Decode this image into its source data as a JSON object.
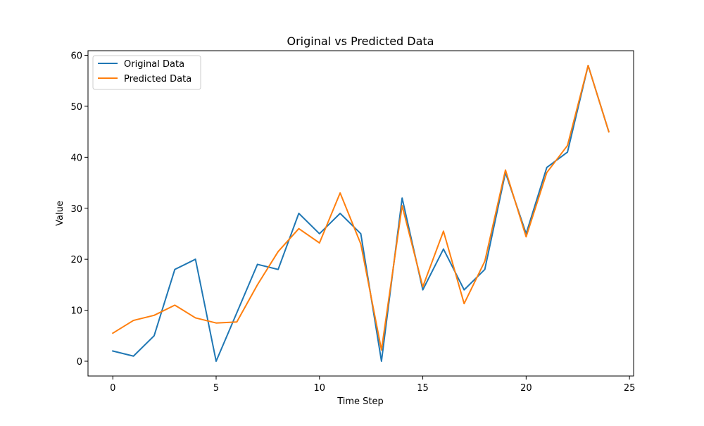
{
  "chart_data": {
    "type": "line",
    "title": "Original vs Predicted Data",
    "xlabel": "Time Step",
    "ylabel": "Value",
    "xlim": [
      -1.2,
      25.2
    ],
    "ylim": [
      -2.9,
      60.9
    ],
    "xticks": [
      0,
      5,
      10,
      15,
      20,
      25
    ],
    "yticks": [
      0,
      10,
      20,
      30,
      40,
      50,
      60
    ],
    "xtick_labels": [
      "0",
      "5",
      "10",
      "15",
      "20",
      "25"
    ],
    "ytick_labels": [
      "0",
      "10",
      "20",
      "30",
      "40",
      "50",
      "60"
    ],
    "grid": false,
    "legend_position": "top-left",
    "x": [
      0,
      1,
      2,
      3,
      4,
      5,
      6,
      7,
      8,
      9,
      10,
      11,
      12,
      13,
      14,
      15,
      16,
      17,
      18,
      19,
      20,
      21,
      22,
      23,
      24
    ],
    "series": [
      {
        "name": "Original Data",
        "color": "#1f77b4",
        "values": [
          2,
          1,
          5,
          18,
          20,
          0,
          9.5,
          19,
          18,
          29,
          25,
          29,
          25,
          0,
          32,
          14,
          22,
          14,
          18,
          37,
          25,
          38,
          41,
          58,
          45
        ]
      },
      {
        "name": "Predicted Data",
        "color": "#ff7f0e",
        "values": [
          5.5,
          8,
          9,
          11,
          8.5,
          7.5,
          7.7,
          15,
          21.5,
          26,
          23.2,
          33,
          23,
          2.2,
          30.5,
          14.6,
          25.5,
          11.3,
          19.6,
          37.5,
          24.4,
          37,
          42.3,
          58,
          45
        ]
      }
    ]
  }
}
